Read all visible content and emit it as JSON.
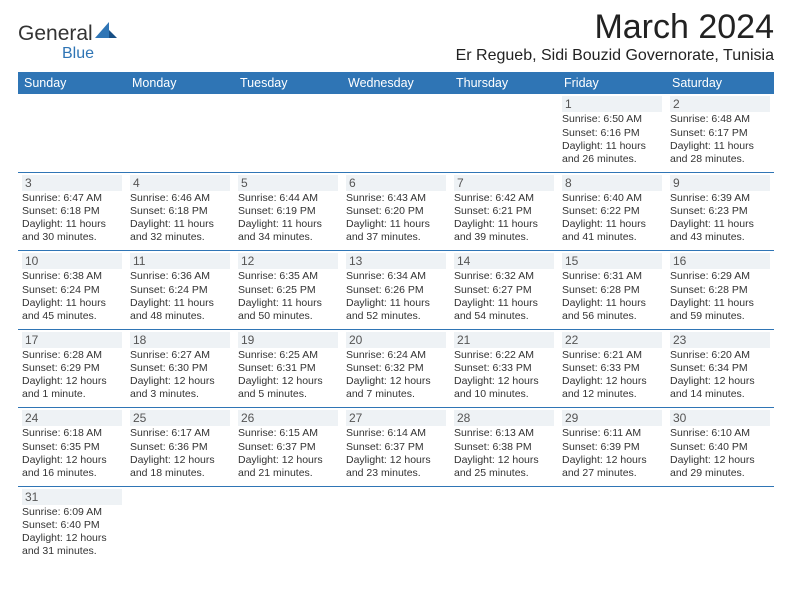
{
  "logo_text": "General",
  "logo_sub": "Blue",
  "title": "March 2024",
  "location": "Er Regueb, Sidi Bouzid Governorate, Tunisia",
  "colors": {
    "header_bg": "#2f75b5",
    "header_fg": "#ffffff",
    "daynum_bg": "#eef2f5",
    "border": "#2f75b5",
    "logo_accent": "#2f75b5"
  },
  "weekdays": [
    "Sunday",
    "Monday",
    "Tuesday",
    "Wednesday",
    "Thursday",
    "Friday",
    "Saturday"
  ],
  "weeks": [
    [
      {
        "blank": true
      },
      {
        "blank": true
      },
      {
        "blank": true
      },
      {
        "blank": true
      },
      {
        "blank": true
      },
      {
        "n": "1",
        "sr": "Sunrise: 6:50 AM",
        "ss": "Sunset: 6:16 PM",
        "dl": "Daylight: 11 hours and 26 minutes."
      },
      {
        "n": "2",
        "sr": "Sunrise: 6:48 AM",
        "ss": "Sunset: 6:17 PM",
        "dl": "Daylight: 11 hours and 28 minutes."
      }
    ],
    [
      {
        "n": "3",
        "sr": "Sunrise: 6:47 AM",
        "ss": "Sunset: 6:18 PM",
        "dl": "Daylight: 11 hours and 30 minutes."
      },
      {
        "n": "4",
        "sr": "Sunrise: 6:46 AM",
        "ss": "Sunset: 6:18 PM",
        "dl": "Daylight: 11 hours and 32 minutes."
      },
      {
        "n": "5",
        "sr": "Sunrise: 6:44 AM",
        "ss": "Sunset: 6:19 PM",
        "dl": "Daylight: 11 hours and 34 minutes."
      },
      {
        "n": "6",
        "sr": "Sunrise: 6:43 AM",
        "ss": "Sunset: 6:20 PM",
        "dl": "Daylight: 11 hours and 37 minutes."
      },
      {
        "n": "7",
        "sr": "Sunrise: 6:42 AM",
        "ss": "Sunset: 6:21 PM",
        "dl": "Daylight: 11 hours and 39 minutes."
      },
      {
        "n": "8",
        "sr": "Sunrise: 6:40 AM",
        "ss": "Sunset: 6:22 PM",
        "dl": "Daylight: 11 hours and 41 minutes."
      },
      {
        "n": "9",
        "sr": "Sunrise: 6:39 AM",
        "ss": "Sunset: 6:23 PM",
        "dl": "Daylight: 11 hours and 43 minutes."
      }
    ],
    [
      {
        "n": "10",
        "sr": "Sunrise: 6:38 AM",
        "ss": "Sunset: 6:24 PM",
        "dl": "Daylight: 11 hours and 45 minutes."
      },
      {
        "n": "11",
        "sr": "Sunrise: 6:36 AM",
        "ss": "Sunset: 6:24 PM",
        "dl": "Daylight: 11 hours and 48 minutes."
      },
      {
        "n": "12",
        "sr": "Sunrise: 6:35 AM",
        "ss": "Sunset: 6:25 PM",
        "dl": "Daylight: 11 hours and 50 minutes."
      },
      {
        "n": "13",
        "sr": "Sunrise: 6:34 AM",
        "ss": "Sunset: 6:26 PM",
        "dl": "Daylight: 11 hours and 52 minutes."
      },
      {
        "n": "14",
        "sr": "Sunrise: 6:32 AM",
        "ss": "Sunset: 6:27 PM",
        "dl": "Daylight: 11 hours and 54 minutes."
      },
      {
        "n": "15",
        "sr": "Sunrise: 6:31 AM",
        "ss": "Sunset: 6:28 PM",
        "dl": "Daylight: 11 hours and 56 minutes."
      },
      {
        "n": "16",
        "sr": "Sunrise: 6:29 AM",
        "ss": "Sunset: 6:28 PM",
        "dl": "Daylight: 11 hours and 59 minutes."
      }
    ],
    [
      {
        "n": "17",
        "sr": "Sunrise: 6:28 AM",
        "ss": "Sunset: 6:29 PM",
        "dl": "Daylight: 12 hours and 1 minute."
      },
      {
        "n": "18",
        "sr": "Sunrise: 6:27 AM",
        "ss": "Sunset: 6:30 PM",
        "dl": "Daylight: 12 hours and 3 minutes."
      },
      {
        "n": "19",
        "sr": "Sunrise: 6:25 AM",
        "ss": "Sunset: 6:31 PM",
        "dl": "Daylight: 12 hours and 5 minutes."
      },
      {
        "n": "20",
        "sr": "Sunrise: 6:24 AM",
        "ss": "Sunset: 6:32 PM",
        "dl": "Daylight: 12 hours and 7 minutes."
      },
      {
        "n": "21",
        "sr": "Sunrise: 6:22 AM",
        "ss": "Sunset: 6:33 PM",
        "dl": "Daylight: 12 hours and 10 minutes."
      },
      {
        "n": "22",
        "sr": "Sunrise: 6:21 AM",
        "ss": "Sunset: 6:33 PM",
        "dl": "Daylight: 12 hours and 12 minutes."
      },
      {
        "n": "23",
        "sr": "Sunrise: 6:20 AM",
        "ss": "Sunset: 6:34 PM",
        "dl": "Daylight: 12 hours and 14 minutes."
      }
    ],
    [
      {
        "n": "24",
        "sr": "Sunrise: 6:18 AM",
        "ss": "Sunset: 6:35 PM",
        "dl": "Daylight: 12 hours and 16 minutes."
      },
      {
        "n": "25",
        "sr": "Sunrise: 6:17 AM",
        "ss": "Sunset: 6:36 PM",
        "dl": "Daylight: 12 hours and 18 minutes."
      },
      {
        "n": "26",
        "sr": "Sunrise: 6:15 AM",
        "ss": "Sunset: 6:37 PM",
        "dl": "Daylight: 12 hours and 21 minutes."
      },
      {
        "n": "27",
        "sr": "Sunrise: 6:14 AM",
        "ss": "Sunset: 6:37 PM",
        "dl": "Daylight: 12 hours and 23 minutes."
      },
      {
        "n": "28",
        "sr": "Sunrise: 6:13 AM",
        "ss": "Sunset: 6:38 PM",
        "dl": "Daylight: 12 hours and 25 minutes."
      },
      {
        "n": "29",
        "sr": "Sunrise: 6:11 AM",
        "ss": "Sunset: 6:39 PM",
        "dl": "Daylight: 12 hours and 27 minutes."
      },
      {
        "n": "30",
        "sr": "Sunrise: 6:10 AM",
        "ss": "Sunset: 6:40 PM",
        "dl": "Daylight: 12 hours and 29 minutes."
      }
    ],
    [
      {
        "n": "31",
        "sr": "Sunrise: 6:09 AM",
        "ss": "Sunset: 6:40 PM",
        "dl": "Daylight: 12 hours and 31 minutes."
      },
      {
        "blank": true
      },
      {
        "blank": true
      },
      {
        "blank": true
      },
      {
        "blank": true
      },
      {
        "blank": true
      },
      {
        "blank": true
      }
    ]
  ]
}
